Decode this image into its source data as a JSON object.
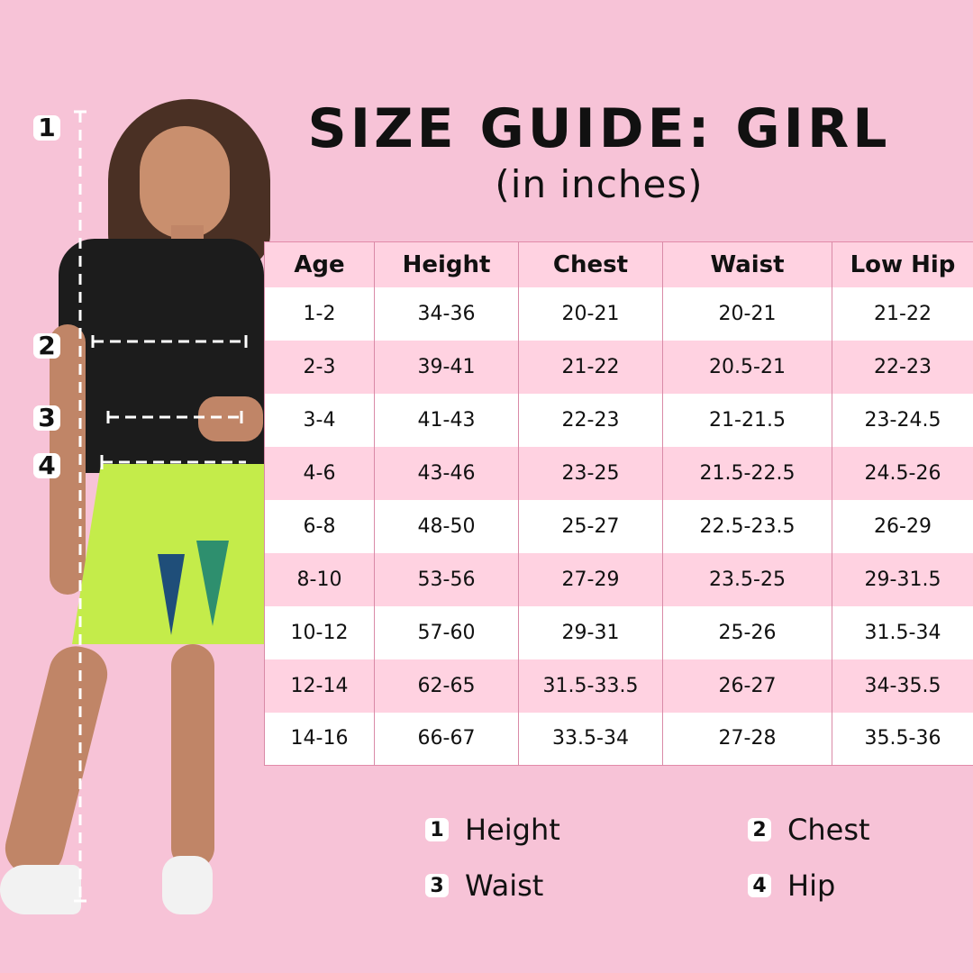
{
  "title": "SIZE GUIDE: GIRL",
  "subtitle": "(in inches)",
  "table": {
    "headers": [
      "Age",
      "Height",
      "Chest",
      "Waist",
      "Low Hip"
    ],
    "rows": [
      [
        "1-2",
        "34-36",
        "20-21",
        "20-21",
        "21-22"
      ],
      [
        "2-3",
        "39-41",
        "21-22",
        "20.5-21",
        "22-23"
      ],
      [
        "3-4",
        "41-43",
        "22-23",
        "21-21.5",
        "23-24.5"
      ],
      [
        "4-6",
        "43-46",
        "23-25",
        "21.5-22.5",
        "24.5-26"
      ],
      [
        "6-8",
        "48-50",
        "25-27",
        "22.5-23.5",
        "26-29"
      ],
      [
        "8-10",
        "53-56",
        "27-29",
        "23.5-25",
        "29-31.5"
      ],
      [
        "10-12",
        "57-60",
        "29-31",
        "25-26",
        "31.5-34"
      ],
      [
        "12-14",
        "62-65",
        "31.5-33.5",
        "26-27",
        "34-35.5"
      ],
      [
        "14-16",
        "66-67",
        "33.5-34",
        "27-28",
        "35.5-36"
      ]
    ]
  },
  "markers": [
    "1",
    "2",
    "3",
    "4"
  ],
  "legend": [
    {
      "num": "1",
      "label": "Height"
    },
    {
      "num": "2",
      "label": "Chest"
    },
    {
      "num": "3",
      "label": "Waist"
    },
    {
      "num": "4",
      "label": "Hip"
    }
  ],
  "colors": {
    "background": "#f7c3d7",
    "stripe": "#ffd2e1",
    "border": "#e28aa9"
  }
}
